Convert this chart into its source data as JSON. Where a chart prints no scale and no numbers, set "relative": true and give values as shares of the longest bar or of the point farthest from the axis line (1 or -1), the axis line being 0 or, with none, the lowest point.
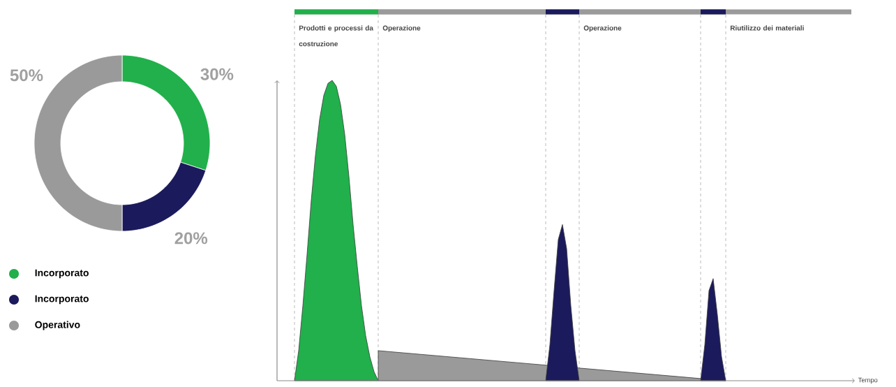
{
  "chart_data": [
    {
      "type": "donut",
      "categories": [
        "Incorporato",
        "Incorporato",
        "Operativo"
      ],
      "values": [
        30,
        20,
        50
      ],
      "colors": [
        "#21b04b",
        "#1b1a5c",
        "#9a9a9a"
      ],
      "value_labels": [
        "30%",
        "20%",
        "50%"
      ],
      "legend": "bottom"
    },
    {
      "type": "area",
      "relative": true,
      "xlabel": "Tempo",
      "categories": [
        null,
        null,
        null,
        null,
        null,
        null,
        null,
        null,
        null,
        null,
        null,
        null,
        null,
        null,
        null,
        null,
        null,
        null,
        null,
        null,
        null,
        null,
        null,
        null,
        null,
        null,
        null,
        null,
        null,
        null,
        null,
        null,
        null,
        null,
        null,
        null,
        null,
        null,
        null,
        null,
        null,
        null,
        null,
        null,
        null,
        null,
        null,
        null,
        null,
        null,
        null,
        null,
        null,
        null,
        null,
        null,
        null,
        null,
        null,
        null,
        null,
        null,
        null,
        null,
        null,
        null,
        null,
        null,
        null,
        null,
        null,
        null,
        null,
        null,
        null,
        null,
        null,
        null,
        null,
        null,
        null,
        null,
        null,
        null,
        null,
        null,
        null,
        null,
        null,
        null,
        null,
        null,
        null,
        null,
        null,
        null,
        null,
        null,
        null,
        null,
        null,
        null,
        null,
        null,
        null,
        null,
        null,
        null,
        null,
        null,
        null,
        null,
        null,
        null,
        null,
        null,
        null,
        null,
        null,
        null,
        null,
        null,
        null,
        null,
        null,
        null,
        null,
        null,
        null,
        null,
        null,
        null,
        null,
        null
      ],
      "series": [
        {
          "color": "#9a9a9a",
          "values": [
            null,
            null,
            null,
            null,
            null,
            null,
            null,
            null,
            null,
            null,
            null,
            null,
            null,
            null,
            null,
            null,
            null,
            null,
            null,
            null,
            0.1,
            null,
            null,
            null,
            null,
            null,
            null,
            null,
            null,
            null,
            null,
            null,
            null,
            null,
            null,
            null,
            null,
            null,
            null,
            null,
            null,
            null,
            null,
            null,
            null,
            null,
            null,
            null,
            null,
            null,
            null,
            null,
            null,
            null,
            null,
            null,
            null,
            null,
            null,
            null,
            null,
            null,
            null,
            null,
            null,
            null,
            null,
            null,
            null,
            null,
            null,
            null,
            null,
            null,
            null,
            null,
            null,
            null,
            null,
            null,
            null,
            null,
            null,
            null,
            null,
            null,
            null,
            null,
            null,
            null,
            null,
            null,
            null,
            null,
            null,
            null,
            null,
            null,
            null,
            null,
            null,
            null,
            null,
            0,
            null,
            null,
            null,
            null,
            null,
            null,
            null,
            null,
            null,
            null,
            null,
            null,
            null,
            null,
            null,
            null,
            null,
            null,
            null,
            null,
            null,
            null,
            null,
            null,
            null,
            null,
            null,
            null,
            null,
            null
          ]
        },
        {
          "color": "#21b04b",
          "values": [
            0,
            0.1,
            0.25,
            0.42,
            0.6,
            0.75,
            0.87,
            0.95,
            0.99,
            1,
            0.98,
            0.92,
            0.82,
            0.68,
            0.52,
            0.38,
            0.25,
            0.15,
            0.08,
            0.03,
            0,
            null,
            null,
            null,
            null,
            null,
            null,
            null,
            null,
            null,
            null,
            null,
            null,
            null,
            null,
            null,
            null,
            null,
            null,
            null,
            null,
            null,
            null,
            null,
            null,
            null,
            null,
            null,
            null,
            null,
            null,
            null,
            null,
            null,
            null,
            null,
            null,
            null,
            null,
            null,
            null,
            null,
            null,
            null,
            null,
            null,
            null,
            null,
            null,
            null,
            null,
            null,
            null,
            null,
            null,
            null,
            null,
            null,
            null,
            null,
            null,
            null,
            null,
            null,
            null,
            null,
            null,
            null,
            null,
            null,
            null,
            null,
            null,
            null,
            null,
            null,
            null,
            null,
            null,
            null,
            null,
            null,
            null,
            null,
            null,
            null,
            null,
            null,
            null,
            null,
            null,
            null,
            null,
            null,
            null,
            null,
            null,
            null,
            null,
            null,
            null,
            null,
            null,
            null,
            null,
            null,
            null,
            null,
            null,
            null,
            null,
            null,
            null,
            null
          ]
        },
        {
          "color": "#1b1a5c",
          "values": [
            null,
            null,
            null,
            null,
            null,
            null,
            null,
            null,
            null,
            null,
            null,
            null,
            null,
            null,
            null,
            null,
            null,
            null,
            null,
            null,
            null,
            null,
            null,
            null,
            null,
            null,
            null,
            null,
            null,
            null,
            null,
            null,
            null,
            null,
            null,
            null,
            null,
            null,
            null,
            null,
            null,
            null,
            null,
            null,
            null,
            null,
            null,
            null,
            null,
            null,
            null,
            null,
            null,
            null,
            null,
            null,
            null,
            null,
            null,
            null,
            0,
            0.12,
            0.3,
            0.47,
            0.52,
            0.44,
            0.25,
            0.1,
            0,
            null,
            null,
            null,
            null,
            null,
            null,
            null,
            null,
            null,
            null,
            null,
            null,
            null,
            null,
            null,
            null,
            null,
            null,
            null,
            null,
            null,
            null,
            null,
            null,
            null,
            null,
            null,
            null,
            null,
            null,
            null,
            null,
            null,
            null,
            null,
            null,
            null,
            null,
            null,
            null,
            null,
            null,
            null,
            null,
            null,
            null,
            null,
            null,
            null,
            null,
            null,
            null,
            null,
            null,
            null,
            null,
            null,
            null,
            null,
            null,
            null,
            null,
            null,
            null,
            null
          ]
        },
        {
          "color": "#1b1a5c",
          "values": [
            null,
            null,
            null,
            null,
            null,
            null,
            null,
            null,
            null,
            null,
            null,
            null,
            null,
            null,
            null,
            null,
            null,
            null,
            null,
            null,
            null,
            null,
            null,
            null,
            null,
            null,
            null,
            null,
            null,
            null,
            null,
            null,
            null,
            null,
            null,
            null,
            null,
            null,
            null,
            null,
            null,
            null,
            null,
            null,
            null,
            null,
            null,
            null,
            null,
            null,
            null,
            null,
            null,
            null,
            null,
            null,
            null,
            null,
            null,
            null,
            null,
            null,
            null,
            null,
            null,
            null,
            null,
            null,
            null,
            null,
            null,
            null,
            null,
            null,
            null,
            null,
            null,
            null,
            null,
            null,
            null,
            null,
            null,
            null,
            null,
            null,
            null,
            null,
            null,
            null,
            null,
            null,
            null,
            null,
            null,
            null,
            null,
            0,
            0.12,
            0.3,
            0.34,
            0.22,
            0.08,
            0,
            null,
            null,
            null,
            null,
            null,
            null,
            null,
            null,
            null,
            null,
            null,
            null,
            null,
            null,
            null,
            null,
            null,
            null,
            null,
            null,
            null,
            null,
            null,
            null,
            null,
            null,
            null,
            null,
            null,
            null
          ]
        }
      ],
      "annotations": [
        "Prodotti e processi da costruzione",
        "Operazione",
        "Operazione",
        "Riutilizzo dei materiali"
      ]
    }
  ]
}
